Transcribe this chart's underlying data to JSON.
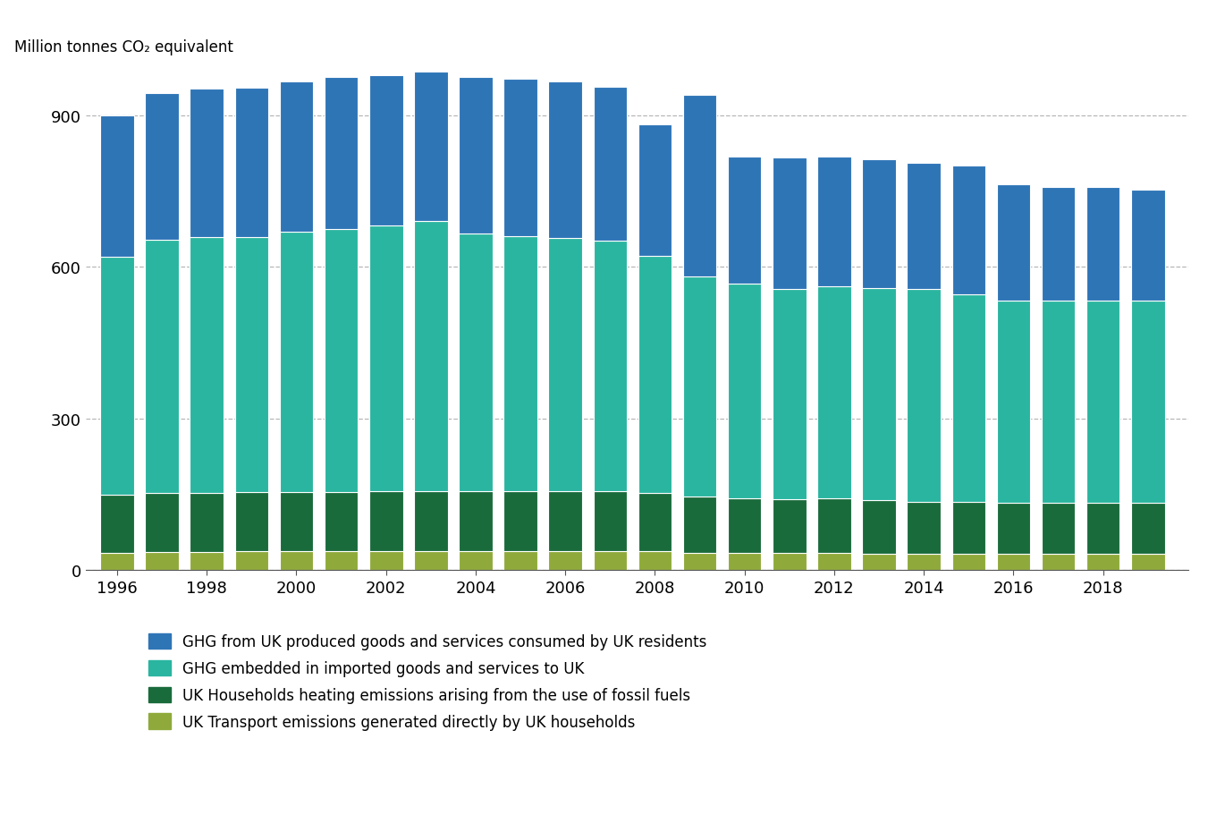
{
  "years": [
    1996,
    1997,
    1998,
    1999,
    2000,
    2001,
    2002,
    2003,
    2004,
    2005,
    2006,
    2007,
    2008,
    2009,
    2010,
    2011,
    2012,
    2013,
    2014,
    2015,
    2016,
    2017,
    2018,
    2019
  ],
  "transport": [
    35,
    36,
    36,
    37,
    37,
    37,
    38,
    38,
    38,
    38,
    38,
    38,
    37,
    35,
    34,
    34,
    34,
    33,
    33,
    33,
    33,
    33,
    33,
    33
  ],
  "heating": [
    115,
    117,
    117,
    117,
    117,
    118,
    118,
    118,
    118,
    118,
    118,
    118,
    115,
    110,
    108,
    107,
    108,
    105,
    103,
    102,
    100,
    100,
    100,
    100
  ],
  "imported": [
    470,
    500,
    505,
    505,
    515,
    520,
    525,
    535,
    510,
    505,
    500,
    495,
    470,
    435,
    425,
    415,
    420,
    420,
    420,
    410,
    400,
    400,
    400,
    400
  ],
  "domestic": [
    280,
    290,
    295,
    295,
    298,
    300,
    298,
    295,
    310,
    310,
    310,
    305,
    260,
    360,
    250,
    260,
    255,
    255,
    250,
    255,
    230,
    225,
    225,
    220
  ],
  "colors": {
    "transport": "#8faa3b",
    "heating": "#1a6b3c",
    "imported": "#2ab5a0",
    "domestic": "#2e75b6"
  },
  "ylabel": "Million tonnes CO₂ equivalent",
  "ylim": [
    0,
    1000
  ],
  "yticks": [
    0,
    300,
    600,
    900
  ],
  "grid_color": "#b0b0b0",
  "background_color": "#ffffff",
  "legend_labels": [
    "GHG from UK produced goods and services consumed by UK residents",
    "GHG embedded in imported goods and services to UK",
    "UK Households heating emissions arising from the use of fossil fuels",
    "UK Transport emissions generated directly by UK households"
  ]
}
